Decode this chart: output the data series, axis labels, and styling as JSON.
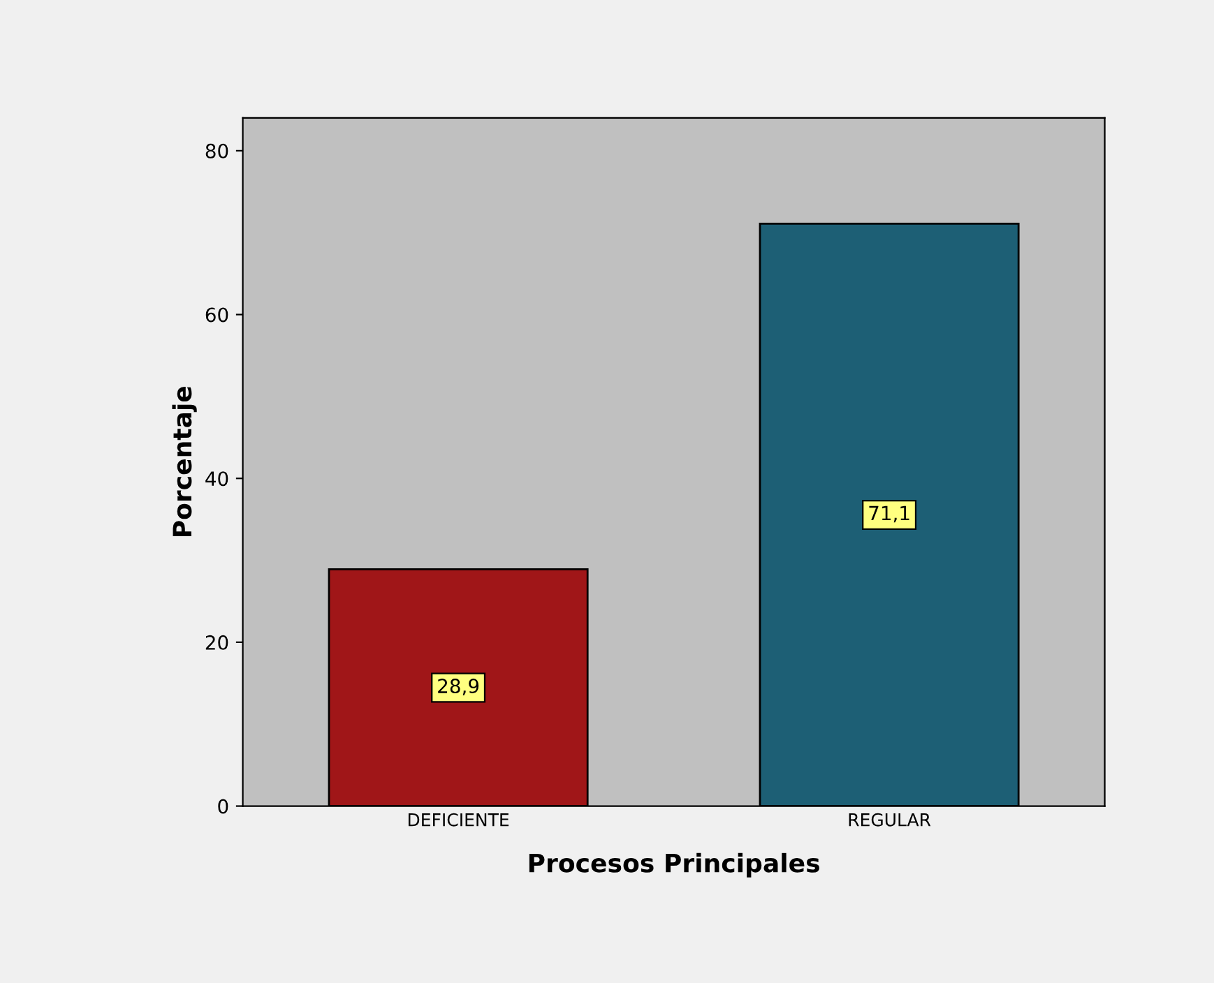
{
  "chart_data": {
    "type": "bar",
    "xlabel": "Procesos Principales",
    "ylabel": "Porcentaje",
    "categories": [
      "DEFICIENTE",
      "REGULAR"
    ],
    "values": [
      28.9,
      71.1
    ],
    "colors": [
      "#a01618",
      "#1d5f75"
    ],
    "value_labels": [
      "28,9",
      "71,1"
    ],
    "ylim": [
      0,
      84
    ],
    "yticks": [
      0,
      20,
      40,
      60,
      80
    ],
    "grid": false,
    "legend": false
  }
}
